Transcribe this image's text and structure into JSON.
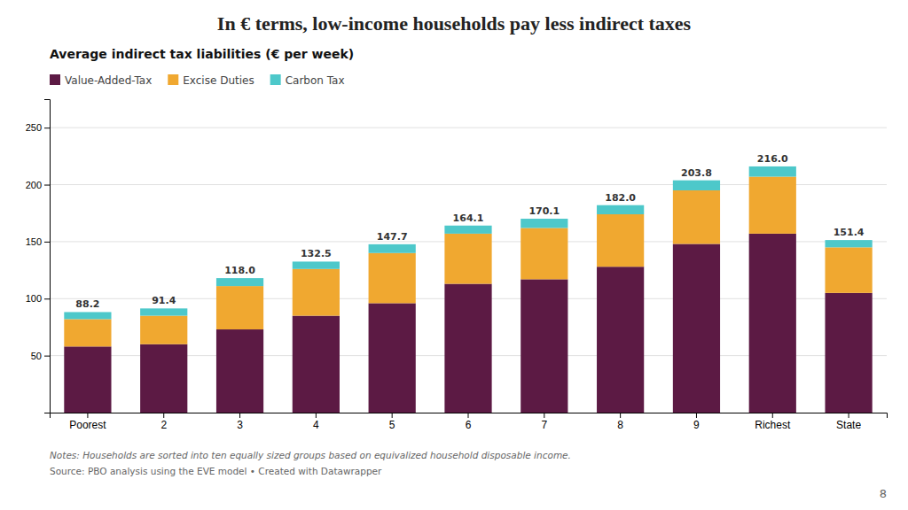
{
  "chart_data": {
    "type": "bar",
    "stacked": true,
    "title": "In € terms, low-income households pay less indirect taxes",
    "subtitle": "Average indirect tax liabilities (€ per week)",
    "categories": [
      "Poorest",
      "2",
      "3",
      "4",
      "5",
      "6",
      "7",
      "8",
      "9",
      "Richest",
      "State"
    ],
    "series": [
      {
        "name": "Value-Added-Tax",
        "color": "#5c1a44",
        "values": [
          58.0,
          60.0,
          73.0,
          85.0,
          96.0,
          113.0,
          117.0,
          128.0,
          148.0,
          157.0,
          105.0
        ]
      },
      {
        "name": "Excise Duties",
        "color": "#f0a830",
        "values": [
          24.0,
          25.0,
          38.0,
          41.0,
          44.0,
          44.0,
          45.0,
          46.0,
          47.0,
          50.0,
          40.0
        ]
      },
      {
        "name": "Carbon Tax",
        "color": "#4dc8ca",
        "values": [
          6.2,
          6.4,
          7.0,
          6.5,
          7.7,
          7.1,
          8.1,
          8.0,
          8.8,
          9.0,
          6.4
        ]
      }
    ],
    "totals": [
      88.2,
      91.4,
      118.0,
      132.5,
      147.7,
      164.1,
      170.1,
      182.0,
      203.8,
      216.0,
      151.4
    ],
    "totals_labels": [
      "88.2",
      "91.4",
      "118.0",
      "132.5",
      "147.7",
      "164.1",
      "170.1",
      "182.0",
      "203.8",
      "216.0",
      "151.4"
    ],
    "ylim": [
      0,
      275
    ],
    "yticks": [
      50,
      100,
      150,
      200,
      250
    ],
    "grid": true,
    "legend": "top",
    "annotations": [
      "Notes: Households are sorted into ten equally sized groups based on equivalized household disposable income.",
      "Source: PBO analysis using the EVE model • Created with Datawrapper",
      "8"
    ]
  }
}
